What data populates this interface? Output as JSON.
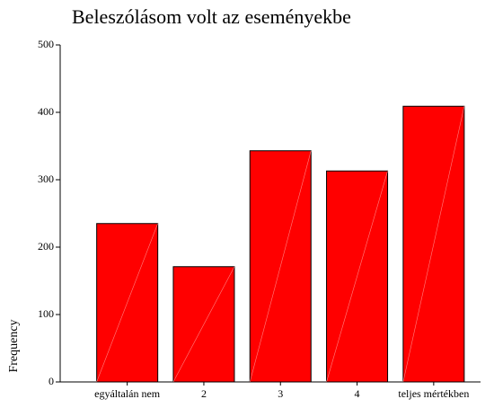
{
  "chart_data": {
    "type": "bar",
    "title": "Beleszólásom volt az eseményekbe",
    "y_label": "Frequency",
    "categories": [
      "egyáltalán nem",
      "2",
      "3",
      "4",
      "teljes mértékben"
    ],
    "values": [
      235,
      171,
      343,
      313,
      409
    ],
    "color": "#ff0000",
    "ylim": [
      0,
      500
    ],
    "yticks": [
      0,
      100,
      200,
      300,
      400,
      500
    ],
    "grid": false
  }
}
